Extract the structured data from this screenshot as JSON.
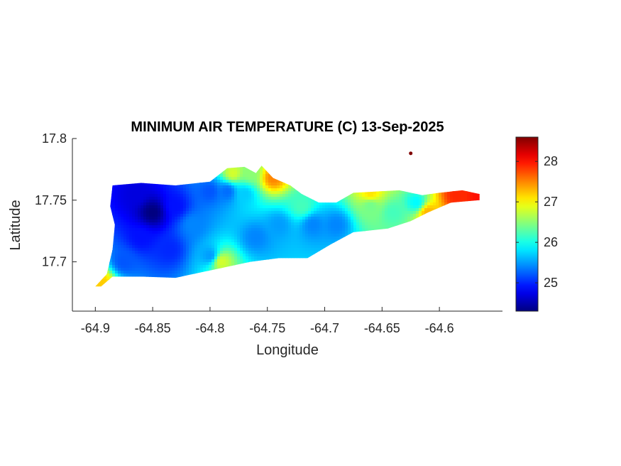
{
  "chart_data": {
    "type": "heatmap",
    "title": "MINIMUM AIR TEMPERATURE (C) 13-Sep-2025",
    "xlabel": "Longitude",
    "ylabel": "Latitude",
    "xlim": [
      -64.92,
      -64.545
    ],
    "ylim": [
      17.66,
      17.8
    ],
    "xticks": [
      -64.9,
      -64.85,
      -64.8,
      -64.75,
      -64.7,
      -64.65,
      -64.6
    ],
    "xtick_labels": [
      "-64.9",
      "-64.85",
      "-64.8",
      "-64.75",
      "-64.7",
      "-64.65",
      "-64.6"
    ],
    "yticks": [
      17.7,
      17.75,
      17.8
    ],
    "ytick_labels": [
      "17.7",
      "17.75",
      "17.8"
    ],
    "colormap": "jet",
    "clim": [
      24.3,
      28.6
    ],
    "colorbar_ticks": [
      25,
      26,
      27,
      28
    ],
    "colorbar_labels": [
      "25",
      "26",
      "27",
      "28"
    ],
    "outline": [
      [
        -64.9,
        17.68
      ],
      [
        -64.89,
        17.69
      ],
      [
        -64.885,
        17.71
      ],
      [
        -64.883,
        17.73
      ],
      [
        -64.887,
        17.745
      ],
      [
        -64.885,
        17.762
      ],
      [
        -64.86,
        17.764
      ],
      [
        -64.83,
        17.762
      ],
      [
        -64.8,
        17.765
      ],
      [
        -64.785,
        17.776
      ],
      [
        -64.77,
        17.777
      ],
      [
        -64.76,
        17.772
      ],
      [
        -64.755,
        17.778
      ],
      [
        -64.745,
        17.768
      ],
      [
        -64.73,
        17.762
      ],
      [
        -64.72,
        17.755
      ],
      [
        -64.705,
        17.748
      ],
      [
        -64.69,
        17.748
      ],
      [
        -64.675,
        17.756
      ],
      [
        -64.635,
        17.758
      ],
      [
        -64.615,
        17.754
      ],
      [
        -64.6,
        17.756
      ],
      [
        -64.58,
        17.758
      ],
      [
        -64.565,
        17.755
      ],
      [
        -64.565,
        17.75
      ],
      [
        -64.59,
        17.748
      ],
      [
        -64.61,
        17.74
      ],
      [
        -64.625,
        17.733
      ],
      [
        -64.645,
        17.727
      ],
      [
        -64.675,
        17.724
      ],
      [
        -64.695,
        17.714
      ],
      [
        -64.715,
        17.703
      ],
      [
        -64.74,
        17.703
      ],
      [
        -64.765,
        17.7
      ],
      [
        -64.8,
        17.693
      ],
      [
        -64.83,
        17.687
      ],
      [
        -64.86,
        17.688
      ],
      [
        -64.885,
        17.688
      ],
      [
        -64.895,
        17.68
      ]
    ],
    "stations": [
      {
        "lon": -64.85,
        "lat": 17.74,
        "value": 24.3
      },
      {
        "lon": -64.865,
        "lat": 17.755,
        "value": 24.7
      },
      {
        "lon": -64.83,
        "lat": 17.745,
        "value": 24.9
      },
      {
        "lon": -64.86,
        "lat": 17.72,
        "value": 24.9
      },
      {
        "lon": -64.835,
        "lat": 17.71,
        "value": 25.0
      },
      {
        "lon": -64.875,
        "lat": 17.7,
        "value": 25.2
      },
      {
        "lon": -64.8,
        "lat": 17.757,
        "value": 25.2
      },
      {
        "lon": -64.785,
        "lat": 17.757,
        "value": 25.3
      },
      {
        "lon": -64.815,
        "lat": 17.73,
        "value": 25.4
      },
      {
        "lon": -64.8,
        "lat": 17.705,
        "value": 25.5
      },
      {
        "lon": -64.77,
        "lat": 17.755,
        "value": 25.7
      },
      {
        "lon": -64.76,
        "lat": 17.72,
        "value": 25.4
      },
      {
        "lon": -64.74,
        "lat": 17.73,
        "value": 25.5
      },
      {
        "lon": -64.71,
        "lat": 17.73,
        "value": 25.4
      },
      {
        "lon": -64.69,
        "lat": 17.73,
        "value": 25.4
      },
      {
        "lon": -64.72,
        "lat": 17.745,
        "value": 26.2
      },
      {
        "lon": -64.765,
        "lat": 17.772,
        "value": 26.5
      },
      {
        "lon": -64.78,
        "lat": 17.772,
        "value": 26.8
      },
      {
        "lon": -64.745,
        "lat": 17.768,
        "value": 27.5
      },
      {
        "lon": -64.79,
        "lat": 17.7,
        "value": 26.8
      },
      {
        "lon": -64.66,
        "lat": 17.745,
        "value": 26.4
      },
      {
        "lon": -64.64,
        "lat": 17.74,
        "value": 26.2
      },
      {
        "lon": -64.62,
        "lat": 17.748,
        "value": 25.9
      },
      {
        "lon": -64.66,
        "lat": 17.756,
        "value": 27.1
      },
      {
        "lon": -64.61,
        "lat": 17.74,
        "value": 27.3
      },
      {
        "lon": -64.585,
        "lat": 17.754,
        "value": 27.9
      },
      {
        "lon": -64.565,
        "lat": 17.753,
        "value": 28.0
      },
      {
        "lon": -64.895,
        "lat": 17.683,
        "value": 27.2
      },
      {
        "lon": -64.625,
        "lat": 17.788,
        "value": 28.6
      }
    ],
    "islet": {
      "lon": -64.625,
      "lat": 17.788,
      "value": 28.6
    }
  }
}
